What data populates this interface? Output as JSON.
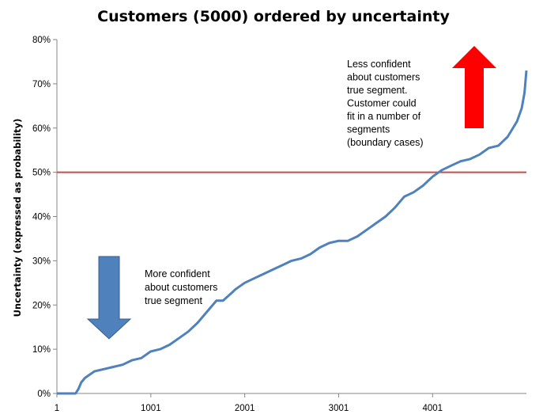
{
  "chart_data": {
    "type": "line",
    "title": "Customers (5000)  ordered by uncertainty",
    "xlabel": "",
    "ylabel": "Uncertainty (expressed as probability)",
    "x_ticks": [
      "1",
      "1001",
      "2001",
      "3001",
      "4001"
    ],
    "xlim": [
      1,
      5000
    ],
    "y_ticks": [
      "0%",
      "10%",
      "20%",
      "30%",
      "40%",
      "50%",
      "60%",
      "70%",
      "80%"
    ],
    "ylim": [
      0,
      0.8
    ],
    "grid": false,
    "legend": "none",
    "threshold": {
      "value": 0.5,
      "color": "#c0504d"
    },
    "series": [
      {
        "color": "#4f81bd",
        "x": [
          1,
          100,
          200,
          230,
          260,
          300,
          400,
          500,
          600,
          700,
          800,
          900,
          1000,
          1100,
          1200,
          1300,
          1400,
          1500,
          1600,
          1700,
          1770,
          1850,
          1900,
          2000,
          2100,
          2200,
          2300,
          2400,
          2500,
          2600,
          2700,
          2800,
          2900,
          3000,
          3100,
          3200,
          3300,
          3400,
          3500,
          3600,
          3700,
          3800,
          3900,
          4000,
          4100,
          4200,
          4300,
          4400,
          4500,
          4600,
          4700,
          4800,
          4900,
          4950,
          4980,
          5000
        ],
        "y": [
          0.0,
          0.0,
          0.0,
          0.01,
          0.025,
          0.035,
          0.05,
          0.055,
          0.06,
          0.065,
          0.075,
          0.08,
          0.095,
          0.1,
          0.11,
          0.125,
          0.14,
          0.16,
          0.185,
          0.21,
          0.21,
          0.225,
          0.235,
          0.25,
          0.26,
          0.27,
          0.28,
          0.29,
          0.3,
          0.305,
          0.315,
          0.33,
          0.34,
          0.345,
          0.345,
          0.355,
          0.37,
          0.385,
          0.4,
          0.42,
          0.445,
          0.455,
          0.47,
          0.49,
          0.505,
          0.515,
          0.525,
          0.53,
          0.54,
          0.555,
          0.56,
          0.58,
          0.615,
          0.645,
          0.68,
          0.73
        ]
      }
    ],
    "annotations": {
      "high": {
        "lines": [
          "Less confident",
          "about customers",
          "true segment.",
          "Customer could",
          "fit in a number of",
          "segments",
          "(boundary cases)"
        ],
        "arrow_color": "#ff0000"
      },
      "low": {
        "lines": [
          "More confident",
          "about customers",
          "true segment"
        ],
        "arrow_color": "#4f81bd"
      }
    }
  }
}
